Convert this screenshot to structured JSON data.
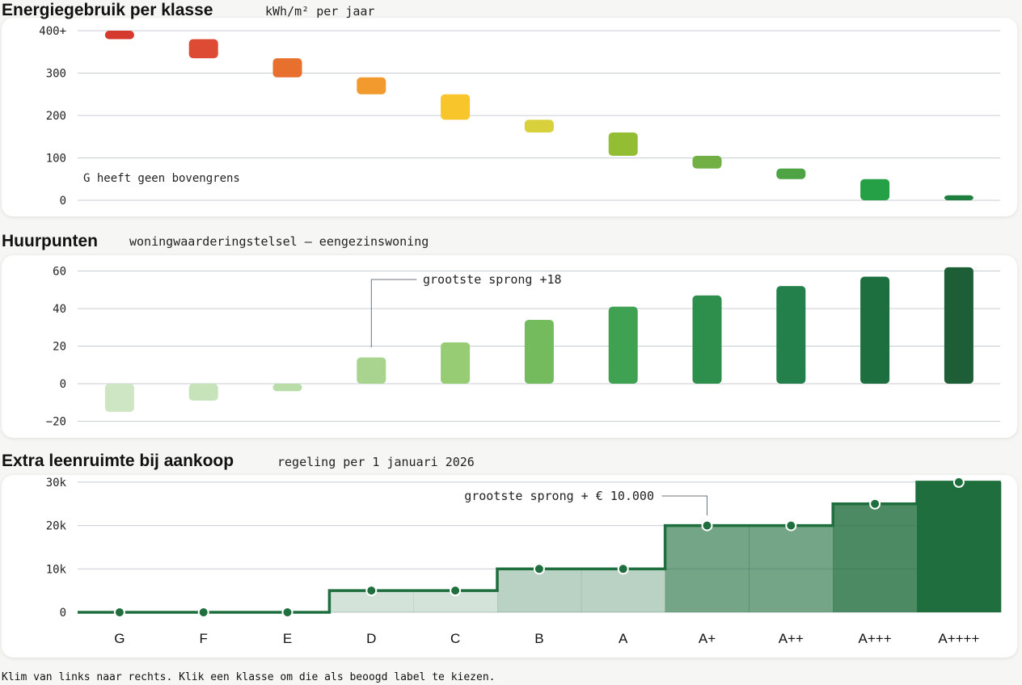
{
  "panels": {
    "energy": {
      "title": "Energiegebruik per klasse",
      "subtitle": "kWh/m² per jaar"
    },
    "points": {
      "title": "Huurpunten",
      "subtitle": "woningwaarderingstelsel – eengezinswoning"
    },
    "loan": {
      "title": "Extra leenruimte bij aankoop",
      "subtitle": "regeling per 1 januari 2026"
    }
  },
  "footer": "Klim van links naar rechts. Klik een klasse om die als beoogd label te kiezen.",
  "colors": {
    "energy": [
      "#d63a2f",
      "#de4b35",
      "#e7702e",
      "#f39a2f",
      "#f8c52b",
      "#d8d13c",
      "#93be34",
      "#72b046",
      "#4ea345",
      "#26a046",
      "#1f7f3f"
    ],
    "points": [
      "#cfe6c5",
      "#c6e3b9",
      "#b9dda9",
      "#a8d48f",
      "#97cb74",
      "#74bb5e",
      "#3fa152",
      "#2d8f4b",
      "#24804a",
      "#1e6f40",
      "#1d5e36"
    ],
    "loan_line": "#1f6e3d",
    "grid": "#c8ccd4"
  },
  "chart_data": [
    {
      "type": "bar",
      "title": "Energiegebruik per klasse",
      "subtitle": "kWh/m² per jaar",
      "categories": [
        "G",
        "F",
        "E",
        "D",
        "C",
        "B",
        "A",
        "A+",
        "A++",
        "A+++",
        "A++++"
      ],
      "ranges": [
        [
          380,
          400
        ],
        [
          335,
          380
        ],
        [
          290,
          335
        ],
        [
          250,
          290
        ],
        [
          190,
          250
        ],
        [
          160,
          190
        ],
        [
          105,
          160
        ],
        [
          75,
          105
        ],
        [
          50,
          75
        ],
        [
          0,
          50
        ],
        [
          0,
          12
        ]
      ],
      "yticks": [
        0,
        100,
        200,
        300,
        400
      ],
      "ytick_labels": [
        "0",
        "100",
        "200",
        "300",
        "400+"
      ],
      "ylim": [
        0,
        400
      ],
      "grid": true,
      "annotation": "G heeft geen bovengrens"
    },
    {
      "type": "bar",
      "title": "Huurpunten",
      "subtitle": "woningwaarderingstelsel – eengezinswoning",
      "categories": [
        "G",
        "F",
        "E",
        "D",
        "C",
        "B",
        "A",
        "A+",
        "A++",
        "A+++",
        "A++++"
      ],
      "values": [
        -15,
        -9,
        -4,
        14,
        22,
        34,
        41,
        47,
        52,
        57,
        62
      ],
      "yticks": [
        -20,
        0,
        20,
        40,
        60
      ],
      "ylim": [
        -20,
        60
      ],
      "grid": true,
      "annotation": "grootste sprong +18"
    },
    {
      "type": "area",
      "title": "Extra leenruimte bij aankoop",
      "subtitle": "regeling per 1 januari 2026",
      "categories": [
        "G",
        "F",
        "E",
        "D",
        "C",
        "B",
        "A",
        "A+",
        "A++",
        "A+++",
        "A++++"
      ],
      "values": [
        0,
        0,
        0,
        5000,
        5000,
        10000,
        10000,
        20000,
        20000,
        25000,
        30000
      ],
      "yticks": [
        0,
        10000,
        20000,
        30000
      ],
      "ytick_labels": [
        "0",
        "10k",
        "20k",
        "30k"
      ],
      "ylim": [
        0,
        30000
      ],
      "grid": true,
      "annotation": "grootste sprong + € 10.000"
    }
  ]
}
